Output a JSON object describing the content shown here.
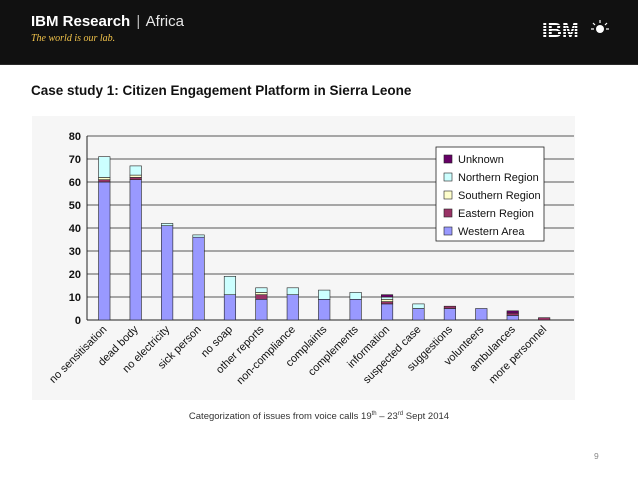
{
  "header": {
    "brand_bold": "IBM Research",
    "brand_sep": "|",
    "brand_region": "Africa",
    "tagline": "The world is our lab.",
    "logo_text": "IBM"
  },
  "slide": {
    "title": "Case study 1: Citizen Engagement Platform in Sierra Leone",
    "caption": {
      "prefix": "Categorization of issues from voice calls 19",
      "sup1": "th",
      "middle": " – 23",
      "sup2": "rd",
      "suffix": " Sept 2014"
    },
    "page_number": "9"
  },
  "colors": {
    "header_bg": "#111111",
    "tagline": "#f0c24a",
    "series": [
      "#9999ff",
      "#993366",
      "#ffffcc",
      "#ccffff",
      "#660066"
    ]
  },
  "chart_data": {
    "type": "bar",
    "stacked": true,
    "title": "",
    "xlabel": "",
    "ylabel": "",
    "ylim": [
      0,
      80
    ],
    "yticks": [
      0,
      10,
      20,
      30,
      40,
      50,
      60,
      70,
      80
    ],
    "grid": true,
    "legend_position": "top-right",
    "categories": [
      "no sensitisation",
      "dead body",
      "no electricity",
      "sick person",
      "no soap",
      "other reports",
      "non-compliance",
      "complaints",
      "complements",
      "information",
      "suspected case",
      "suggestions",
      "volunteers",
      "ambulances",
      "more personnel"
    ],
    "series": [
      {
        "name": "Western Area",
        "values": [
          60,
          61,
          41,
          36,
          11,
          9,
          11,
          9,
          9,
          7,
          5,
          5,
          5,
          2,
          0
        ]
      },
      {
        "name": "Eastern Region",
        "values": [
          1,
          1,
          0,
          0,
          0,
          2,
          0,
          0,
          0,
          1,
          0,
          1,
          0,
          1,
          1
        ]
      },
      {
        "name": "Southern Region",
        "values": [
          1,
          1,
          0,
          0,
          0,
          1,
          0,
          0,
          0,
          1,
          0,
          0,
          0,
          0,
          0
        ]
      },
      {
        "name": "Northern Region",
        "values": [
          9,
          4,
          1,
          1,
          8,
          2,
          3,
          4,
          3,
          1,
          2,
          0,
          0,
          0,
          0
        ]
      },
      {
        "name": "Unknown",
        "values": [
          0,
          0,
          0,
          0,
          0,
          0,
          0,
          0,
          0,
          1,
          0,
          0,
          0,
          1,
          0
        ]
      }
    ],
    "legend_order": [
      "Unknown",
      "Northern Region",
      "Southern Region",
      "Eastern Region",
      "Western Area"
    ]
  }
}
